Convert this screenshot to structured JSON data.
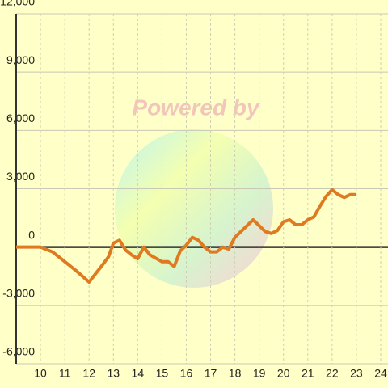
{
  "chart_data": {
    "type": "line",
    "watermark": "Powered by",
    "x": [
      9,
      10,
      10.5,
      11,
      11.5,
      12,
      12.5,
      12.8,
      13,
      13.25,
      13.5,
      13.75,
      14,
      14.25,
      14.5,
      15,
      15.25,
      15.5,
      15.75,
      16,
      16.25,
      16.5,
      16.75,
      17,
      17.25,
      17.5,
      17.75,
      18,
      18.5,
      18.75,
      19,
      19.25,
      19.5,
      19.75,
      20,
      20.25,
      20.5,
      20.75,
      21,
      21.25,
      21.5,
      21.75,
      22,
      22.25,
      22.5,
      22.75,
      23
    ],
    "series": [
      {
        "color": "#e07a20",
        "values": [
          0,
          0,
          -250,
          -750,
          -1250,
          -1800,
          -1000,
          -500,
          200,
          350,
          -150,
          -400,
          -600,
          0,
          -400,
          -750,
          -750,
          -1000,
          -200,
          100,
          500,
          350,
          0,
          -250,
          -250,
          0,
          -100,
          500,
          1100,
          1400,
          1100,
          800,
          700,
          850,
          1300,
          1400,
          1150,
          1150,
          1400,
          1550,
          2100,
          2600,
          2950,
          2700,
          2550,
          2700,
          2700
        ]
      }
    ],
    "xlim": [
      9,
      24.3
    ],
    "xticks": [
      10,
      11,
      12,
      13,
      14,
      15,
      16,
      17,
      18,
      19,
      20,
      21,
      22,
      23,
      24
    ],
    "ylim": [
      -6000,
      12000
    ],
    "yticks": [
      {
        "value": -6000,
        "label": "-6,000"
      },
      {
        "value": -3000,
        "label": "-3,000"
      },
      0,
      {
        "value": 3000,
        "label": "3,000"
      },
      {
        "value": 6000,
        "label": "6,000"
      },
      {
        "value": 9000,
        "label": "9,000"
      },
      {
        "value": 12000,
        "label": "12,000"
      }
    ],
    "grid": true
  }
}
